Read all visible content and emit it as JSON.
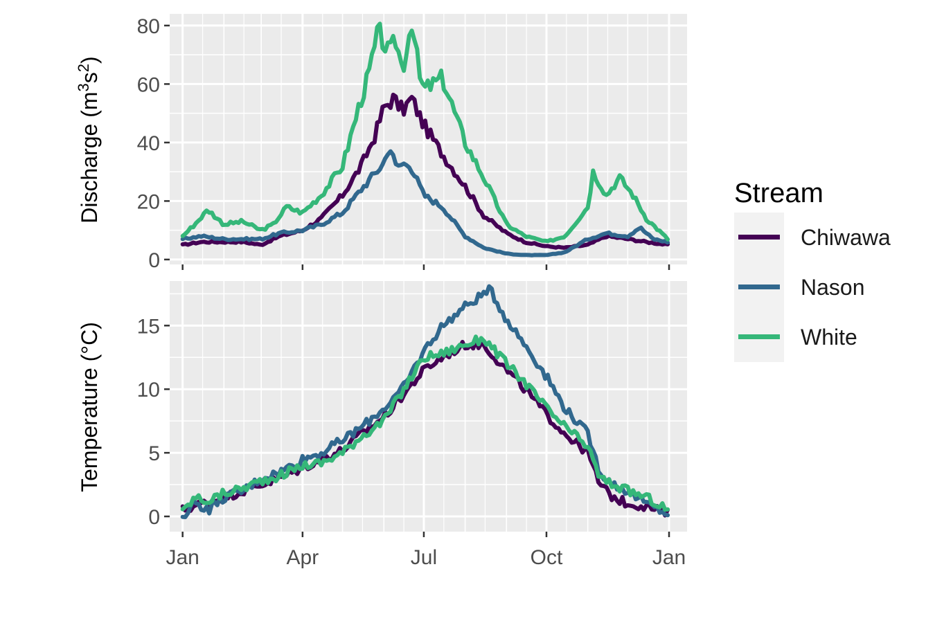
{
  "colors": {
    "panel_bg": "#ebebeb",
    "grid": "#ffffff",
    "axis_text": "#4d4d4d",
    "Chiwawa": "#440154",
    "Nason": "#31688e",
    "White": "#35b779"
  },
  "legend": {
    "title": "Stream",
    "items": [
      {
        "name": "Chiwawa",
        "color": "#440154"
      },
      {
        "name": "Nason",
        "color": "#31688e"
      },
      {
        "name": "White",
        "color": "#35b779"
      }
    ]
  },
  "chart_data": [
    {
      "type": "line",
      "ylabel": "Discharge (m",
      "ylabel_sup1": "3",
      "ylabel_mid": "s",
      "ylabel_sup2": "2",
      "ylabel_end": ")",
      "ylim": [
        0,
        84
      ],
      "yticks": [
        0,
        20,
        40,
        60,
        80
      ],
      "grid": true,
      "x_axis_labels_shown": false,
      "series": [
        {
          "name": "Chiwawa",
          "color": "#440154",
          "points": [
            [
              "01-01",
              5
            ],
            [
              "01-15",
              6
            ],
            [
              "02-01",
              6
            ],
            [
              "02-15",
              6
            ],
            [
              "03-01",
              5
            ],
            [
              "03-15",
              8
            ],
            [
              "04-01",
              10
            ],
            [
              "04-15",
              14
            ],
            [
              "05-01",
              22
            ],
            [
              "05-15",
              32
            ],
            [
              "05-25",
              42
            ],
            [
              "06-01",
              52
            ],
            [
              "06-08",
              55
            ],
            [
              "06-15",
              51
            ],
            [
              "06-22",
              55
            ],
            [
              "07-01",
              46
            ],
            [
              "07-15",
              36
            ],
            [
              "08-01",
              25
            ],
            [
              "08-15",
              15
            ],
            [
              "09-01",
              9
            ],
            [
              "09-15",
              6
            ],
            [
              "10-01",
              4.5
            ],
            [
              "10-15",
              4
            ],
            [
              "11-01",
              5
            ],
            [
              "11-15",
              8
            ],
            [
              "12-01",
              7
            ],
            [
              "12-15",
              6
            ],
            [
              "12-31",
              5
            ]
          ]
        },
        {
          "name": "Nason",
          "color": "#31688e",
          "points": [
            [
              "01-01",
              7
            ],
            [
              "01-15",
              8
            ],
            [
              "02-01",
              7
            ],
            [
              "02-15",
              7
            ],
            [
              "03-01",
              7
            ],
            [
              "03-15",
              9
            ],
            [
              "04-01",
              10
            ],
            [
              "04-15",
              12
            ],
            [
              "05-01",
              16
            ],
            [
              "05-15",
              24
            ],
            [
              "06-01",
              33
            ],
            [
              "06-05",
              39
            ],
            [
              "06-10",
              32
            ],
            [
              "06-20",
              33
            ],
            [
              "07-01",
              22
            ],
            [
              "07-15",
              18
            ],
            [
              "08-01",
              8
            ],
            [
              "08-15",
              4
            ],
            [
              "09-01",
              2
            ],
            [
              "09-15",
              1.5
            ],
            [
              "10-01",
              1.5
            ],
            [
              "10-15",
              2.5
            ],
            [
              "11-01",
              7
            ],
            [
              "11-15",
              9
            ],
            [
              "12-01",
              8
            ],
            [
              "12-10",
              11
            ],
            [
              "12-20",
              7
            ],
            [
              "12-31",
              6
            ]
          ]
        },
        {
          "name": "White",
          "color": "#35b779",
          "points": [
            [
              "01-01",
              8
            ],
            [
              "01-10",
              12
            ],
            [
              "01-20",
              17
            ],
            [
              "02-01",
              12
            ],
            [
              "02-15",
              13
            ],
            [
              "03-01",
              10
            ],
            [
              "03-10",
              12
            ],
            [
              "03-20",
              18
            ],
            [
              "04-01",
              16
            ],
            [
              "04-15",
              22
            ],
            [
              "05-01",
              32
            ],
            [
              "05-15",
              55
            ],
            [
              "05-20",
              62
            ],
            [
              "05-28",
              78
            ],
            [
              "06-05",
              70
            ],
            [
              "06-10",
              75
            ],
            [
              "06-15",
              65
            ],
            [
              "06-22",
              82
            ],
            [
              "06-28",
              62
            ],
            [
              "07-01",
              58
            ],
            [
              "07-15",
              62
            ],
            [
              "08-01",
              40
            ],
            [
              "08-15",
              28
            ],
            [
              "09-01",
              12
            ],
            [
              "09-15",
              8
            ],
            [
              "10-01",
              6
            ],
            [
              "10-15",
              8
            ],
            [
              "11-01",
              18
            ],
            [
              "11-05",
              30
            ],
            [
              "11-15",
              22
            ],
            [
              "11-25",
              28
            ],
            [
              "12-05",
              22
            ],
            [
              "12-15",
              14
            ],
            [
              "12-31",
              7
            ]
          ]
        }
      ]
    },
    {
      "type": "line",
      "ylabel": "Temperature (°C)",
      "ylim": [
        -1,
        18.5
      ],
      "yticks": [
        0,
        5,
        10,
        15
      ],
      "grid": true,
      "xticks": [
        "Jan",
        "Apr",
        "Jul",
        "Oct",
        "Jan"
      ],
      "series": [
        {
          "name": "Chiwawa",
          "color": "#440154",
          "points": [
            [
              "01-01",
              0.5
            ],
            [
              "01-15",
              1
            ],
            [
              "02-01",
              1.5
            ],
            [
              "02-15",
              2
            ],
            [
              "03-01",
              2.5
            ],
            [
              "03-15",
              3
            ],
            [
              "04-01",
              3.8
            ],
            [
              "04-15",
              4.5
            ],
            [
              "05-01",
              5.2
            ],
            [
              "05-15",
              6.5
            ],
            [
              "06-01",
              7.8
            ],
            [
              "06-15",
              9.5
            ],
            [
              "07-01",
              11.5
            ],
            [
              "07-15",
              12.5
            ],
            [
              "08-01",
              13.5
            ],
            [
              "08-15",
              13.5
            ],
            [
              "09-01",
              11.5
            ],
            [
              "09-15",
              10
            ],
            [
              "10-01",
              8
            ],
            [
              "10-15",
              6.5
            ],
            [
              "11-01",
              5
            ],
            [
              "11-10",
              2.5
            ],
            [
              "11-20",
              1.5
            ],
            [
              "12-01",
              1
            ],
            [
              "12-15",
              0.8
            ],
            [
              "12-31",
              0.2
            ]
          ]
        },
        {
          "name": "Nason",
          "color": "#31688e",
          "points": [
            [
              "01-01",
              0
            ],
            [
              "01-10",
              1.2
            ],
            [
              "01-20",
              0.5
            ],
            [
              "02-01",
              1.5
            ],
            [
              "02-15",
              2
            ],
            [
              "03-01",
              3
            ],
            [
              "03-15",
              3.5
            ],
            [
              "04-01",
              4.5
            ],
            [
              "04-15",
              5
            ],
            [
              "05-01",
              6
            ],
            [
              "05-15",
              7
            ],
            [
              "06-01",
              8.5
            ],
            [
              "06-15",
              10
            ],
            [
              "07-01",
              13
            ],
            [
              "07-15",
              15
            ],
            [
              "08-01",
              16.5
            ],
            [
              "08-15",
              17.5
            ],
            [
              "08-20",
              17.8
            ],
            [
              "09-01",
              15.5
            ],
            [
              "09-15",
              13.5
            ],
            [
              "10-01",
              11
            ],
            [
              "10-15",
              8.5
            ],
            [
              "11-01",
              6.5
            ],
            [
              "11-10",
              3.5
            ],
            [
              "11-20",
              2.5
            ],
            [
              "12-01",
              2
            ],
            [
              "12-15",
              1
            ],
            [
              "12-31",
              0.2
            ]
          ]
        },
        {
          "name": "White",
          "color": "#35b779",
          "points": [
            [
              "01-01",
              0.3
            ],
            [
              "01-10",
              1.5
            ],
            [
              "01-20",
              1.2
            ],
            [
              "02-01",
              1.8
            ],
            [
              "02-15",
              2.2
            ],
            [
              "03-01",
              2.8
            ],
            [
              "03-15",
              3.2
            ],
            [
              "04-01",
              4
            ],
            [
              "04-15",
              4.2
            ],
            [
              "05-01",
              5
            ],
            [
              "05-15",
              6.3
            ],
            [
              "06-01",
              7.5
            ],
            [
              "06-15",
              9.8
            ],
            [
              "07-01",
              12.5
            ],
            [
              "07-15",
              12.8
            ],
            [
              "08-01",
              13.5
            ],
            [
              "08-15",
              14
            ],
            [
              "09-01",
              12
            ],
            [
              "09-15",
              10.5
            ],
            [
              "10-01",
              8.5
            ],
            [
              "10-15",
              7
            ],
            [
              "11-01",
              5.5
            ],
            [
              "11-10",
              3
            ],
            [
              "11-20",
              2.5
            ],
            [
              "12-01",
              2
            ],
            [
              "12-15",
              1.5
            ],
            [
              "12-31",
              0.5
            ]
          ]
        }
      ]
    }
  ]
}
